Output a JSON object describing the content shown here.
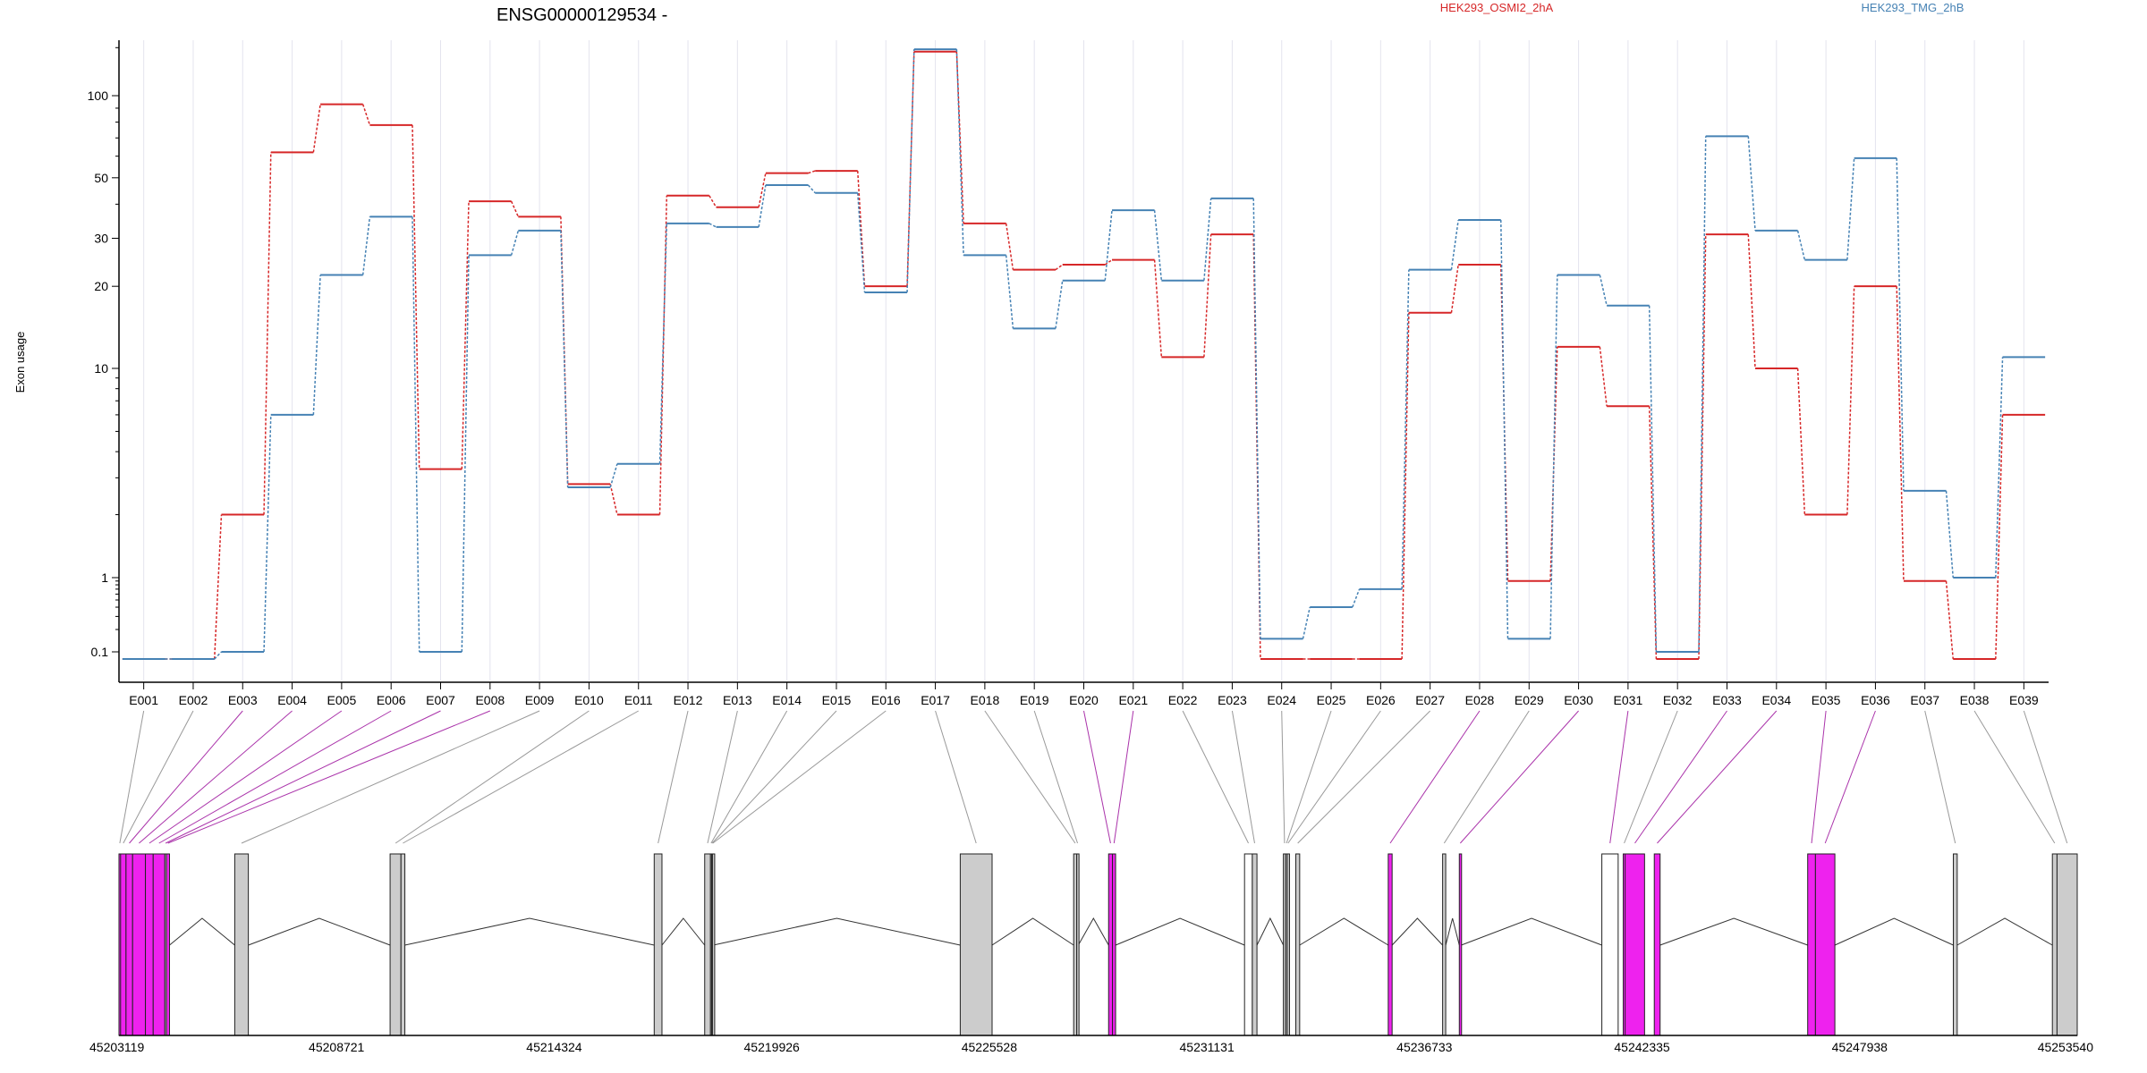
{
  "chart_data": {
    "type": "line",
    "title": "ENSG00000129534 -",
    "ylabel": "Exon usage",
    "xlabel": "",
    "scale": "log",
    "yticks": [
      "0.1",
      "1",
      "10",
      "20",
      "30",
      "50",
      "100"
    ],
    "ytick_values": [
      0.1,
      1,
      10,
      20,
      30,
      50,
      100
    ],
    "ylim": [
      0.08,
      170
    ],
    "grid": "vertical",
    "legend_position": "top-right",
    "categories": [
      "E001",
      "E002",
      "E003",
      "E004",
      "E005",
      "E006",
      "E007",
      "E008",
      "E009",
      "E010",
      "E011",
      "E012",
      "E013",
      "E014",
      "E015",
      "E016",
      "E017",
      "E018",
      "E019",
      "E020",
      "E021",
      "E022",
      "E023",
      "E024",
      "E025",
      "E026",
      "E027",
      "E028",
      "E029",
      "E030",
      "E031",
      "E032",
      "E033",
      "E034",
      "E035",
      "E036",
      "E037",
      "E038",
      "E039"
    ],
    "series": [
      {
        "name": "HEK293_OSMI2_2hA",
        "color": "#d62728",
        "values": [
          0.08,
          0.08,
          2,
          62,
          93,
          78,
          3.3,
          41,
          36,
          2.8,
          2,
          43,
          39,
          52,
          53,
          20,
          145,
          34,
          23,
          24,
          25,
          11,
          31,
          0.08,
          0.08,
          0.08,
          16,
          24,
          0.9,
          12,
          6.6,
          0.08,
          31,
          10,
          2,
          20,
          0.9,
          0.08,
          6
        ]
      },
      {
        "name": "HEK293_TMG_2hB",
        "color": "#4682b4",
        "values": [
          0.08,
          0.08,
          0.1,
          6,
          22,
          36,
          0.1,
          26,
          32,
          2.7,
          3.5,
          34,
          33,
          47,
          44,
          19,
          148,
          26,
          14,
          21,
          38,
          21,
          42,
          0.15,
          0.4,
          0.7,
          23,
          35,
          0.15,
          22,
          17,
          0.1,
          71,
          32,
          25,
          59,
          2.6,
          1,
          11
        ]
      }
    ],
    "genomic_ticks": [
      "45203119",
      "45208721",
      "45214324",
      "45219926",
      "45225528",
      "45231131",
      "45236733",
      "45242335",
      "45247938",
      "45253540"
    ],
    "gene_model": {
      "boxes": [
        {
          "exon": "E001",
          "start": 45203119,
          "end": 45203160,
          "color": "#ee22ee"
        },
        {
          "exon": "E002",
          "start": 45203160,
          "end": 45203300,
          "color": "#ee22ee"
        },
        {
          "exon": "E003",
          "start": 45203300,
          "end": 45203470,
          "color": "#ee22ee"
        },
        {
          "exon": "E004",
          "start": 45203470,
          "end": 45203800,
          "color": "#ee22ee"
        },
        {
          "exon": "E005",
          "start": 45203800,
          "end": 45204000,
          "color": "#ee22ee"
        },
        {
          "exon": "E006",
          "start": 45204000,
          "end": 45204300,
          "color": "#ee22ee"
        },
        {
          "exon": "E007",
          "start": 45204300,
          "end": 45204340,
          "color": "#cccccc"
        },
        {
          "exon": "E008",
          "start": 45204340,
          "end": 45204420,
          "color": "#ee22ee"
        },
        {
          "exon": "E009",
          "start": 45206100,
          "end": 45206450,
          "color": "#cccccc"
        },
        {
          "exon": "E010",
          "start": 45210100,
          "end": 45210380,
          "color": "#cccccc"
        },
        {
          "exon": "E011",
          "start": 45210380,
          "end": 45210480,
          "color": "#cccccc"
        },
        {
          "exon": "E012",
          "start": 45216900,
          "end": 45217100,
          "color": "#cccccc"
        },
        {
          "exon": "E013",
          "start": 45218200,
          "end": 45218350,
          "color": "#cccccc"
        },
        {
          "exon": "E014",
          "start": 45218350,
          "end": 45218380,
          "color": "#cccccc"
        },
        {
          "exon": "E015",
          "start": 45218380,
          "end": 45218400,
          "color": "#cccccc"
        },
        {
          "exon": "E016",
          "start": 45218400,
          "end": 45218420,
          "color": "#cccccc"
        },
        {
          "exon": "E017",
          "start": 45224780,
          "end": 45225600,
          "color": "#cccccc"
        },
        {
          "exon": "E018",
          "start": 45227700,
          "end": 45227780,
          "color": "#cccccc"
        },
        {
          "exon": "E019",
          "start": 45227780,
          "end": 45227820,
          "color": "#cccccc"
        },
        {
          "exon": "E020",
          "start": 45228600,
          "end": 45228700,
          "color": "#ee22ee"
        },
        {
          "exon": "E021",
          "start": 45228700,
          "end": 45228780,
          "color": "#ee22ee"
        },
        {
          "exon": "E022",
          "start": 45232100,
          "end": 45232300,
          "color": "#ffffff"
        },
        {
          "exon": "E023",
          "start": 45232300,
          "end": 45232420,
          "color": "#cccccc"
        },
        {
          "exon": "E024",
          "start": 45233100,
          "end": 45233160,
          "color": "#cccccc"
        },
        {
          "exon": "E025",
          "start": 45233160,
          "end": 45233200,
          "color": "#cccccc"
        },
        {
          "exon": "E026",
          "start": 45233200,
          "end": 45233240,
          "color": "#cccccc"
        },
        {
          "exon": "E027",
          "start": 45233420,
          "end": 45233520,
          "color": "#cccccc"
        },
        {
          "exon": "E028",
          "start": 45235800,
          "end": 45235900,
          "color": "#ee22ee"
        },
        {
          "exon": "E029",
          "start": 45237200,
          "end": 45237280,
          "color": "#cccccc"
        },
        {
          "exon": "E030",
          "start": 45237630,
          "end": 45237680,
          "color": "#ee22ee"
        },
        {
          "exon": "E031",
          "start": 45241300,
          "end": 45241720,
          "color": "#ffffff"
        },
        {
          "exon": "E032",
          "start": 45241850,
          "end": 45241900,
          "color": "#ee22ee"
        },
        {
          "exon": "E033",
          "start": 45241900,
          "end": 45242400,
          "color": "#ee22ee"
        },
        {
          "exon": "E034",
          "start": 45242650,
          "end": 45242800,
          "color": "#ee22ee"
        },
        {
          "exon": "E035",
          "start": 45246600,
          "end": 45246800,
          "color": "#ee22ee"
        },
        {
          "exon": "E036",
          "start": 45246800,
          "end": 45247300,
          "color": "#ee22ee"
        },
        {
          "exon": "E037",
          "start": 45250350,
          "end": 45250450,
          "color": "#cccccc"
        },
        {
          "exon": "E038",
          "start": 45252900,
          "end": 45253020,
          "color": "#cccccc"
        },
        {
          "exon": "E039",
          "start": 45253020,
          "end": 45253540,
          "color": "#cccccc"
        }
      ],
      "connector_colors": [
        "#999999",
        "#999999",
        "#aa33aa",
        "#aa33aa",
        "#aa33aa",
        "#aa33aa",
        "#aa33aa",
        "#aa33aa",
        "#999999",
        "#999999",
        "#999999",
        "#999999",
        "#999999",
        "#999999",
        "#999999",
        "#999999",
        "#999999",
        "#999999",
        "#999999",
        "#aa33aa",
        "#aa33aa",
        "#999999",
        "#999999",
        "#999999",
        "#999999",
        "#999999",
        "#999999",
        "#aa33aa",
        "#999999",
        "#aa33aa",
        "#aa33aa",
        "#999999",
        "#aa33aa",
        "#aa33aa",
        "#aa33aa",
        "#aa33aa",
        "#999999",
        "#999999",
        "#999999"
      ]
    }
  }
}
